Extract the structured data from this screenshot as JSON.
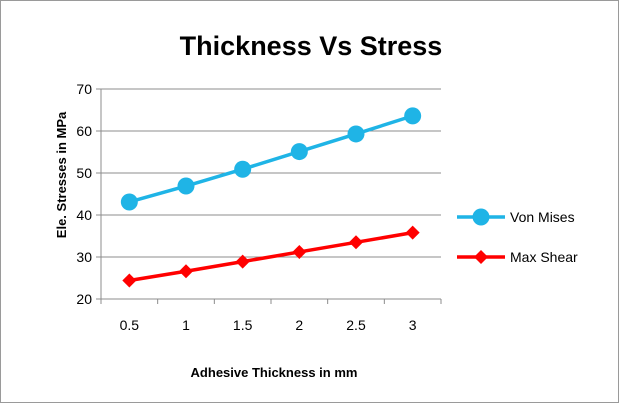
{
  "chart_data": {
    "type": "line",
    "title": "Thickness Vs Stress",
    "xlabel": "Adhesive Thickness in mm",
    "ylabel": "Ele. Stresses in MPa",
    "categories": [
      "0.5",
      "1",
      "1.5",
      "2",
      "2.5",
      "3"
    ],
    "ylim": [
      20,
      70
    ],
    "yticks": [
      20,
      30,
      40,
      50,
      60,
      70
    ],
    "grid": true,
    "legend_position": "right",
    "series": [
      {
        "name": "Von Mises",
        "values": [
          43.1,
          46.9,
          50.9,
          55.1,
          59.3,
          63.6
        ],
        "color": "#1fb4e6",
        "marker": "circle"
      },
      {
        "name": "Max Shear",
        "values": [
          24.4,
          26.6,
          28.9,
          31.2,
          33.5,
          35.8
        ],
        "color": "#ff0000",
        "marker": "diamond"
      }
    ]
  }
}
